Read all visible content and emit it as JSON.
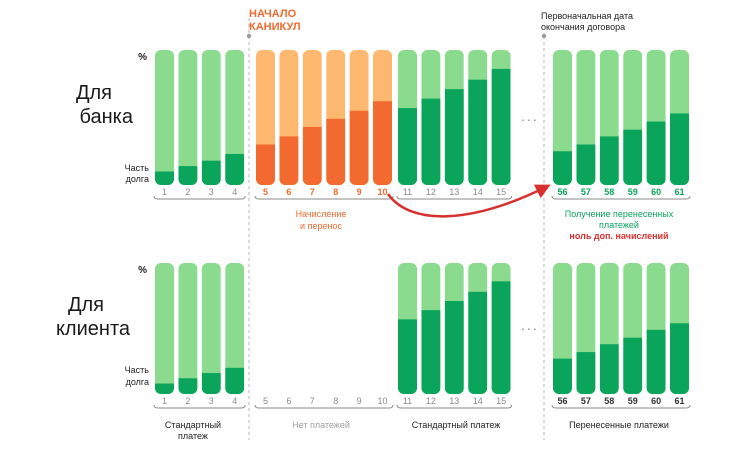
{
  "colors": {
    "light_green": "#8adb8d",
    "dark_green": "#0aa55a",
    "light_orange": "#ffb870",
    "dark_orange": "#f26a2f",
    "bracket": "#8a8a8a",
    "arrow": "#d8302e",
    "dashed": "#b5b5b5"
  },
  "rows": {
    "bank": {
      "title_line1": "Для",
      "title_line2": "банка"
    },
    "client": {
      "title_line1": "Для",
      "title_line2": "клиента"
    }
  },
  "axis": {
    "percent": "%",
    "debt_share_line1": "Часть",
    "debt_share_line2": "долга"
  },
  "markers": {
    "holiday_start_line1": "НАЧАЛО",
    "holiday_start_line2": "КАНИКУЛ",
    "original_end_line1": "Первоначальная дата",
    "original_end_line2": "окончания договора"
  },
  "ellipsis": "...",
  "captions": {
    "bank_accrual_line1": "Начисление",
    "bank_accrual_line2": "и перенос",
    "bank_receive_line1": "Получение перенесенных",
    "bank_receive_line2": "платежей",
    "bank_receive_line3": "ноль доп. начислений",
    "client_standard_line1": "Стандартный",
    "client_standard_line2": "платеж",
    "client_no_payments": "Нет платежей",
    "client_standard_after": "Стандартный платеж",
    "client_transferred": "Перенесенные платежи"
  },
  "groups": {
    "bank_g1": {
      "months": [
        "1",
        "2",
        "3",
        "4"
      ],
      "debt_share": [
        0.1,
        0.14,
        0.18,
        0.23
      ]
    },
    "bank_g2": {
      "months": [
        "5",
        "6",
        "7",
        "8",
        "9",
        "10"
      ],
      "debt_share": [
        0.3,
        0.36,
        0.43,
        0.49,
        0.55,
        0.62
      ]
    },
    "bank_g3": {
      "months": [
        "11",
        "12",
        "13",
        "14",
        "15"
      ],
      "debt_share": [
        0.57,
        0.64,
        0.71,
        0.78,
        0.86
      ]
    },
    "bank_g4": {
      "months": [
        "56",
        "57",
        "58",
        "59",
        "60",
        "61"
      ],
      "debt_share": [
        0.25,
        0.3,
        0.36,
        0.41,
        0.47,
        0.53
      ]
    },
    "client_g1": {
      "months": [
        "1",
        "2",
        "3",
        "4"
      ],
      "debt_share": [
        0.08,
        0.12,
        0.16,
        0.2
      ]
    },
    "client_g2": {
      "months": [
        "5",
        "6",
        "7",
        "8",
        "9",
        "10"
      ]
    },
    "client_g3": {
      "months": [
        "11",
        "12",
        "13",
        "14",
        "15"
      ],
      "debt_share": [
        0.57,
        0.64,
        0.71,
        0.78,
        0.86
      ]
    },
    "client_g4": {
      "months": [
        "56",
        "57",
        "58",
        "59",
        "60",
        "61"
      ],
      "debt_share": [
        0.27,
        0.32,
        0.38,
        0.43,
        0.49,
        0.54
      ]
    }
  }
}
